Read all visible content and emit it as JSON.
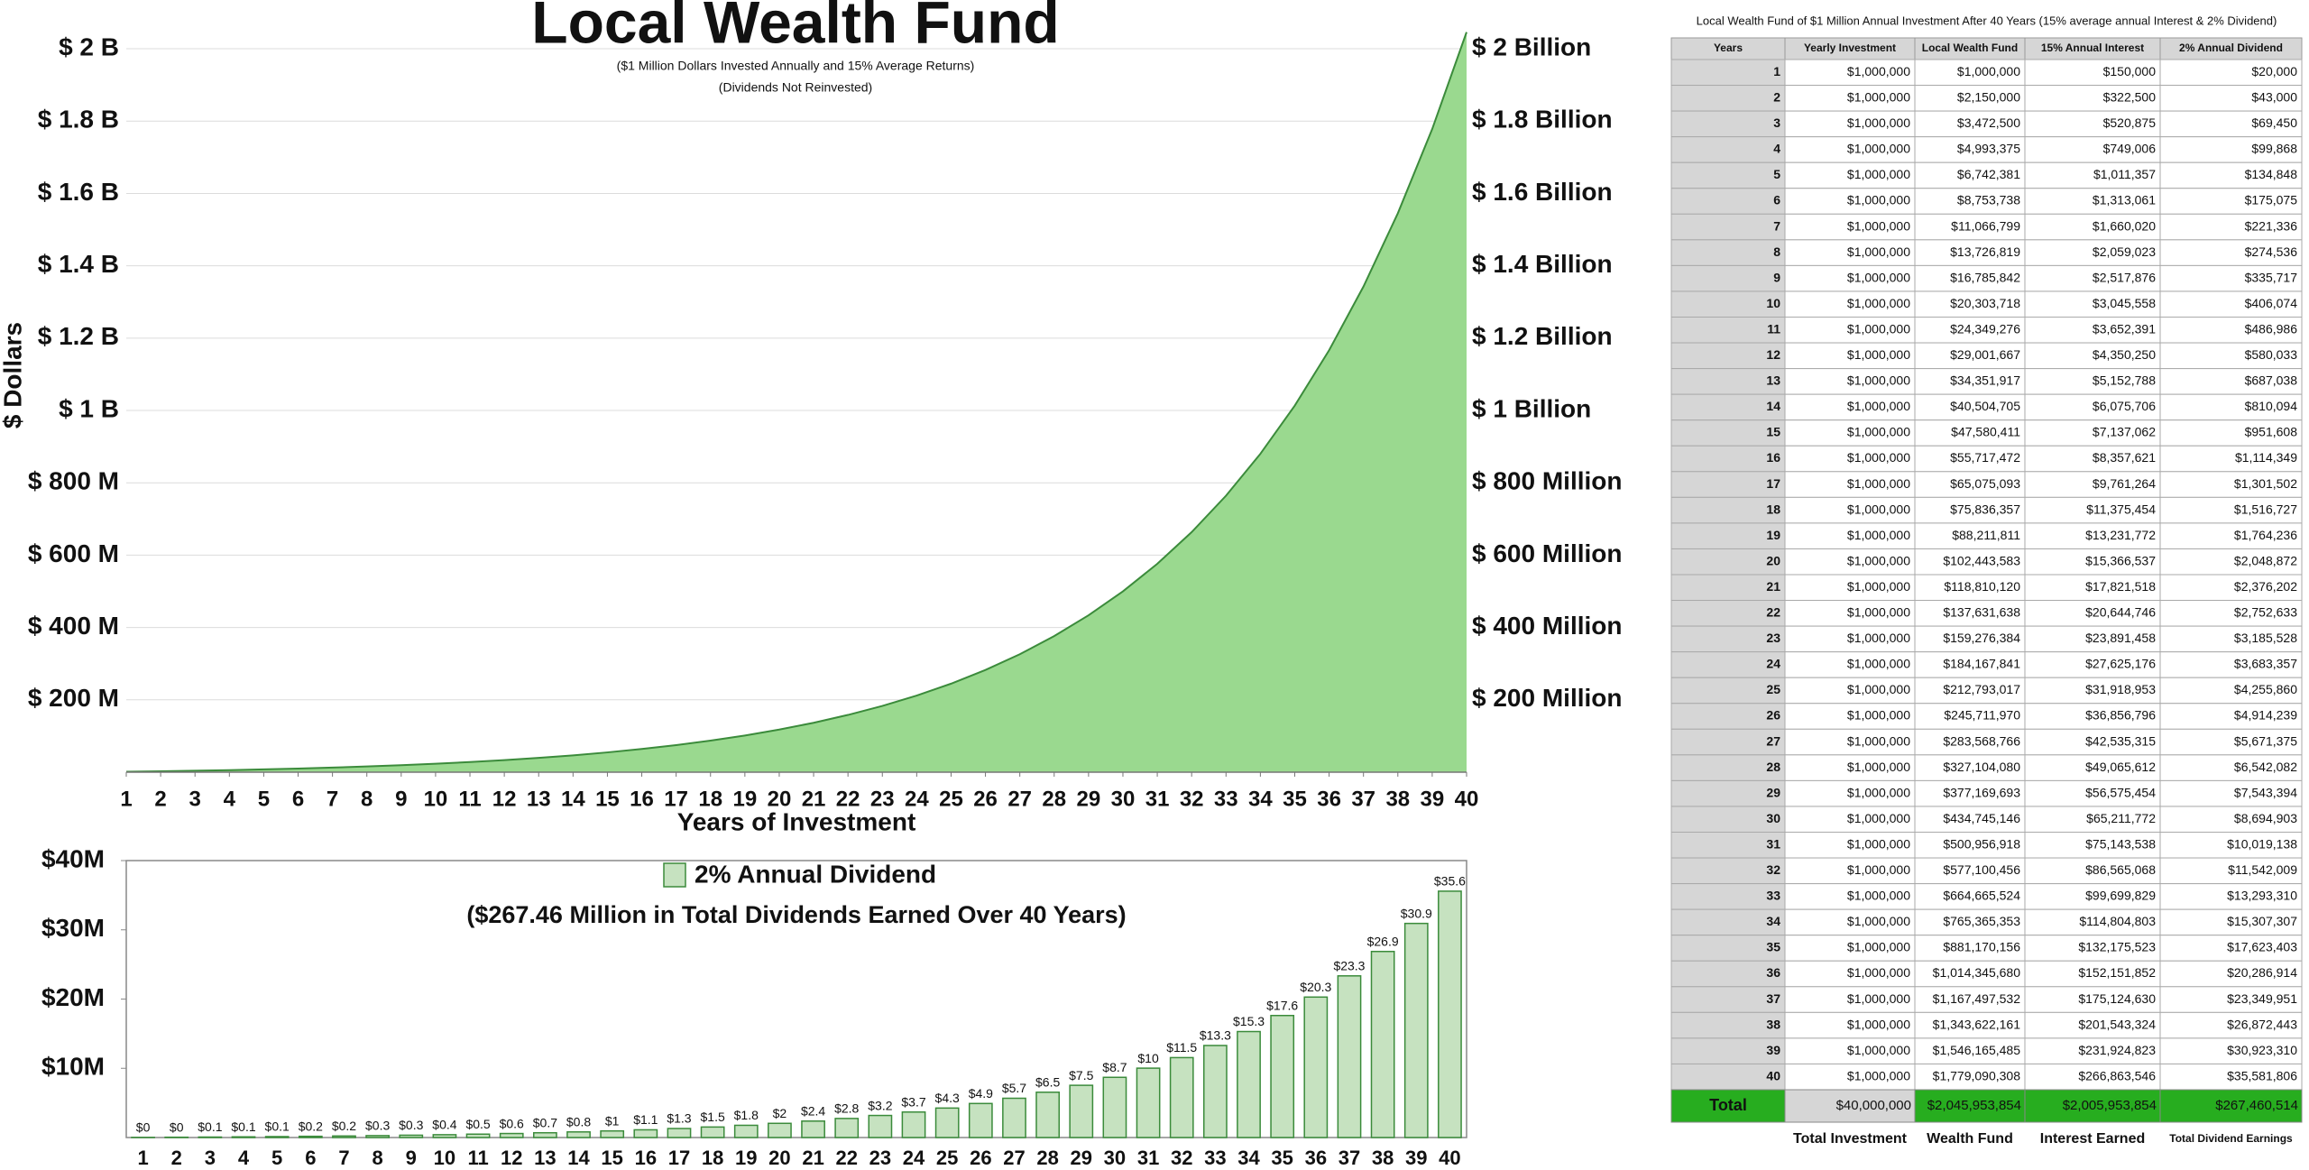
{
  "chart_data": [
    {
      "type": "area",
      "title": "Local Wealth Fund",
      "subtitle": [
        "($1 Million Dollars Invested Annually and 15% Average Returns)",
        "(Dividends Not Reinvested)"
      ],
      "y_label": "$ Dollars",
      "x_label": "Years of Investment",
      "categories": [
        1,
        2,
        3,
        4,
        5,
        6,
        7,
        8,
        9,
        10,
        11,
        12,
        13,
        14,
        15,
        16,
        17,
        18,
        19,
        20,
        21,
        22,
        23,
        24,
        25,
        26,
        27,
        28,
        29,
        30,
        31,
        32,
        33,
        34,
        35,
        36,
        37,
        38,
        39,
        40
      ],
      "values": [
        1150000,
        2472500,
        3993375,
        5742381,
        7753738,
        10066799,
        12726819,
        15785842,
        19303718,
        23349276,
        28001667,
        33351917,
        39504705,
        46580411,
        54717472,
        64075093,
        74836357,
        87211811,
        101443583,
        117810120,
        136631638,
        158276384,
        183167841,
        211793017,
        244711970,
        282568766,
        326104080,
        376169693,
        433745146,
        499956918,
        576100456,
        663665524,
        764365353,
        880170156,
        1013345680,
        1166497532,
        1342622161,
        1545165485,
        1778090308,
        2045953854
      ],
      "color": "#9ad98f",
      "line_color": "#3b8b3b",
      "ylim": [
        0,
        2050000000
      ],
      "yticks": [
        {
          "value": 200000000,
          "label": "$ 200 M"
        },
        {
          "value": 400000000,
          "label": "$ 400 M"
        },
        {
          "value": 600000000,
          "label": "$ 600 M"
        },
        {
          "value": 800000000,
          "label": "$ 800 M"
        },
        {
          "value": 1000000000,
          "label": "$ 1 B"
        },
        {
          "value": 1200000000,
          "label": "$ 1.2 B"
        },
        {
          "value": 1400000000,
          "label": "$ 1.4 B"
        },
        {
          "value": 1600000000,
          "label": "$ 1.6 B"
        },
        {
          "value": 1800000000,
          "label": "$ 1.8 B"
        },
        {
          "value": 2000000000,
          "label": "$ 2 B"
        }
      ],
      "y2lim": [
        0,
        2050000000
      ],
      "y2ticks": [
        {
          "value": 200000000,
          "label": "$ 200 Million"
        },
        {
          "value": 400000000,
          "label": "$ 400 Million"
        },
        {
          "value": 600000000,
          "label": "$ 600 Million"
        },
        {
          "value": 800000000,
          "label": "$ 800 Million"
        },
        {
          "value": 1000000000,
          "label": "$ 1 Billion"
        },
        {
          "value": 1200000000,
          "label": "$ 1.2 Billion"
        },
        {
          "value": 1400000000,
          "label": "$ 1.4 Billion"
        },
        {
          "value": 1600000000,
          "label": "$ 1.6 Billion"
        },
        {
          "value": 1800000000,
          "label": "$ 1.8 Billion"
        },
        {
          "value": 2000000000,
          "label": "$ 2 Billion"
        }
      ],
      "grid": true
    },
    {
      "type": "bar",
      "annotation": "($267.46 Million in Total Dividends Earned Over 40 Years)",
      "categories": [
        1,
        2,
        3,
        4,
        5,
        6,
        7,
        8,
        9,
        10,
        11,
        12,
        13,
        14,
        15,
        16,
        17,
        18,
        19,
        20,
        21,
        22,
        23,
        24,
        25,
        26,
        27,
        28,
        29,
        30,
        31,
        32,
        33,
        34,
        35,
        36,
        37,
        38,
        39,
        40
      ],
      "series": [
        {
          "name": "2% Annual Dividend",
          "color": "#c6e2c0",
          "edge_color": "#3b8b3b",
          "values": [
            0.02,
            0.043,
            0.069,
            0.1,
            0.135,
            0.175,
            0.221,
            0.275,
            0.336,
            0.406,
            0.487,
            0.58,
            0.687,
            0.81,
            0.952,
            1.114,
            1.302,
            1.517,
            1.764,
            2.049,
            2.376,
            2.753,
            3.186,
            3.683,
            4.256,
            4.914,
            5.671,
            6.542,
            7.543,
            8.695,
            10.019,
            11.542,
            13.293,
            15.307,
            17.623,
            20.287,
            23.349,
            26.872,
            30.923,
            35.582
          ],
          "value_labels": [
            "$0",
            "$0",
            "$0.1",
            "$0.1",
            "$0.1",
            "$0.2",
            "$0.2",
            "$0.3",
            "$0.3",
            "$0.4",
            "$0.5",
            "$0.6",
            "$0.7",
            "$0.8",
            "$1",
            "$1.1",
            "$1.3",
            "$1.5",
            "$1.8",
            "$2",
            "$2.4",
            "$2.8",
            "$3.2",
            "$3.7",
            "$4.3",
            "$4.9",
            "$5.7",
            "$6.5",
            "$7.5",
            "$8.7",
            "$10",
            "$11.5",
            "$13.3",
            "$15.3",
            "$17.6",
            "$20.3",
            "$23.3",
            "$26.9",
            "$30.9",
            "$35.6"
          ]
        }
      ],
      "ylim": [
        0,
        40
      ],
      "yticks": [
        {
          "value": 10,
          "label": "$10M"
        },
        {
          "value": 20,
          "label": "$20M"
        },
        {
          "value": 30,
          "label": "$30M"
        },
        {
          "value": 40,
          "label": "$40M"
        }
      ],
      "legend": "top",
      "grid": false
    }
  ],
  "table": {
    "title": "Local Wealth Fund of $1 Million Annual Investment After 40 Years (15% average annual Interest & 2% Dividend)",
    "columns": [
      "Years",
      "Yearly Investment",
      "Local Wealth Fund",
      "15% Annual Interest",
      "2% Annual Dividend"
    ],
    "rows": [
      [
        "1",
        "$1,000,000",
        "$1,000,000",
        "$150,000",
        "$20,000"
      ],
      [
        "2",
        "$1,000,000",
        "$2,150,000",
        "$322,500",
        "$43,000"
      ],
      [
        "3",
        "$1,000,000",
        "$3,472,500",
        "$520,875",
        "$69,450"
      ],
      [
        "4",
        "$1,000,000",
        "$4,993,375",
        "$749,006",
        "$99,868"
      ],
      [
        "5",
        "$1,000,000",
        "$6,742,381",
        "$1,011,357",
        "$134,848"
      ],
      [
        "6",
        "$1,000,000",
        "$8,753,738",
        "$1,313,061",
        "$175,075"
      ],
      [
        "7",
        "$1,000,000",
        "$11,066,799",
        "$1,660,020",
        "$221,336"
      ],
      [
        "8",
        "$1,000,000",
        "$13,726,819",
        "$2,059,023",
        "$274,536"
      ],
      [
        "9",
        "$1,000,000",
        "$16,785,842",
        "$2,517,876",
        "$335,717"
      ],
      [
        "10",
        "$1,000,000",
        "$20,303,718",
        "$3,045,558",
        "$406,074"
      ],
      [
        "11",
        "$1,000,000",
        "$24,349,276",
        "$3,652,391",
        "$486,986"
      ],
      [
        "12",
        "$1,000,000",
        "$29,001,667",
        "$4,350,250",
        "$580,033"
      ],
      [
        "13",
        "$1,000,000",
        "$34,351,917",
        "$5,152,788",
        "$687,038"
      ],
      [
        "14",
        "$1,000,000",
        "$40,504,705",
        "$6,075,706",
        "$810,094"
      ],
      [
        "15",
        "$1,000,000",
        "$47,580,411",
        "$7,137,062",
        "$951,608"
      ],
      [
        "16",
        "$1,000,000",
        "$55,717,472",
        "$8,357,621",
        "$1,114,349"
      ],
      [
        "17",
        "$1,000,000",
        "$65,075,093",
        "$9,761,264",
        "$1,301,502"
      ],
      [
        "18",
        "$1,000,000",
        "$75,836,357",
        "$11,375,454",
        "$1,516,727"
      ],
      [
        "19",
        "$1,000,000",
        "$88,211,811",
        "$13,231,772",
        "$1,764,236"
      ],
      [
        "20",
        "$1,000,000",
        "$102,443,583",
        "$15,366,537",
        "$2,048,872"
      ],
      [
        "21",
        "$1,000,000",
        "$118,810,120",
        "$17,821,518",
        "$2,376,202"
      ],
      [
        "22",
        "$1,000,000",
        "$137,631,638",
        "$20,644,746",
        "$2,752,633"
      ],
      [
        "23",
        "$1,000,000",
        "$159,276,384",
        "$23,891,458",
        "$3,185,528"
      ],
      [
        "24",
        "$1,000,000",
        "$184,167,841",
        "$27,625,176",
        "$3,683,357"
      ],
      [
        "25",
        "$1,000,000",
        "$212,793,017",
        "$31,918,953",
        "$4,255,860"
      ],
      [
        "26",
        "$1,000,000",
        "$245,711,970",
        "$36,856,796",
        "$4,914,239"
      ],
      [
        "27",
        "$1,000,000",
        "$283,568,766",
        "$42,535,315",
        "$5,671,375"
      ],
      [
        "28",
        "$1,000,000",
        "$327,104,080",
        "$49,065,612",
        "$6,542,082"
      ],
      [
        "29",
        "$1,000,000",
        "$377,169,693",
        "$56,575,454",
        "$7,543,394"
      ],
      [
        "30",
        "$1,000,000",
        "$434,745,146",
        "$65,211,772",
        "$8,694,903"
      ],
      [
        "31",
        "$1,000,000",
        "$500,956,918",
        "$75,143,538",
        "$10,019,138"
      ],
      [
        "32",
        "$1,000,000",
        "$577,100,456",
        "$86,565,068",
        "$11,542,009"
      ],
      [
        "33",
        "$1,000,000",
        "$664,665,524",
        "$99,699,829",
        "$13,293,310"
      ],
      [
        "34",
        "$1,000,000",
        "$765,365,353",
        "$114,804,803",
        "$15,307,307"
      ],
      [
        "35",
        "$1,000,000",
        "$881,170,156",
        "$132,175,523",
        "$17,623,403"
      ],
      [
        "36",
        "$1,000,000",
        "$1,014,345,680",
        "$152,151,852",
        "$20,286,914"
      ],
      [
        "37",
        "$1,000,000",
        "$1,167,497,532",
        "$175,124,630",
        "$23,349,951"
      ],
      [
        "38",
        "$1,000,000",
        "$1,343,622,161",
        "$201,543,324",
        "$26,872,443"
      ],
      [
        "39",
        "$1,000,000",
        "$1,546,165,485",
        "$231,924,823",
        "$30,923,310"
      ],
      [
        "40",
        "$1,000,000",
        "$1,779,090,308",
        "$266,863,546",
        "$35,581,806"
      ]
    ],
    "total": [
      "Total",
      "$40,000,000",
      "$2,045,953,854",
      "$2,005,953,854",
      "$267,460,514"
    ],
    "footer": [
      "Total Investment",
      "Wealth Fund",
      "Interest Earned",
      "Total Dividend Earnings"
    ]
  }
}
